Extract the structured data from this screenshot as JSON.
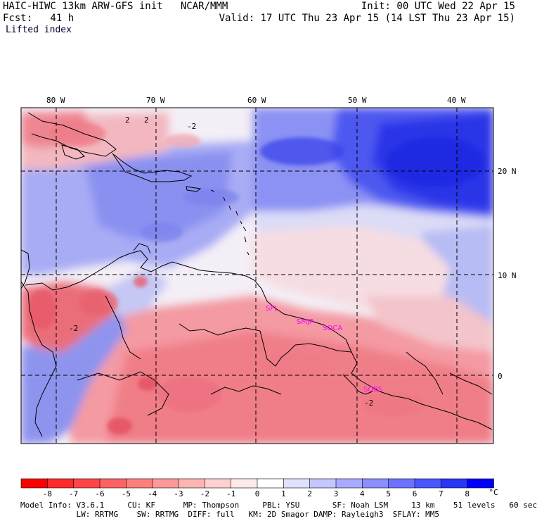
{
  "header": {
    "title_left": "HAIC-HIWC 13km ARW-GFS init   NCAR/MMM",
    "fcst_left": "Fcst:   41 h",
    "init_right": "Init: 00 UTC Wed 22 Apr 15",
    "valid_right": "Valid: 17 UTC Thu 23 Apr 15 (14 LST Thu 23 Apr 15)",
    "variable": "Lifted index"
  },
  "map": {
    "longitude_labels": [
      "80 W",
      "70 W",
      "60 W",
      "50 W",
      "40 W"
    ],
    "latitude_labels": [
      "20 N",
      "10 N",
      "0"
    ],
    "contour_labels": [
      "2",
      "2",
      "-2",
      "-2",
      "-2"
    ],
    "stations": [
      "SFL",
      "SMJP",
      "SOCA",
      "SOBS"
    ],
    "colors": {
      "frame": "#000000",
      "station": "#ff00ff"
    }
  },
  "colorbar": {
    "labels": [
      "-8",
      "-7",
      "-6",
      "-5",
      "-4",
      "-3",
      "-2",
      "-1",
      "0",
      "1",
      "2",
      "3",
      "4",
      "5",
      "6",
      "7",
      "8"
    ],
    "unit": "°C",
    "colors": [
      "#ff0000",
      "#ff2a2a",
      "#ff4646",
      "#ff6262",
      "#ff7e7e",
      "#ff9898",
      "#ffb4b4",
      "#ffd0d0",
      "#ffeaea",
      "#ffffff",
      "#e0e0ff",
      "#c4c6ff",
      "#a8aaff",
      "#8a8eff",
      "#6c72ff",
      "#4c56ff",
      "#2a36f6",
      "#0000ff"
    ]
  },
  "footer": {
    "line1": "Model Info: V3.6.1     CU: KF      MP: Thompson     PBL: YSU       SF: Noah LSM     13 km    51 levels   60 sec",
    "line2": "            LW: RRTMG    SW: RRTMG  DIFF: full   KM: 2D Smagor DAMP: Rayleigh3  SFLAY: MM5"
  }
}
